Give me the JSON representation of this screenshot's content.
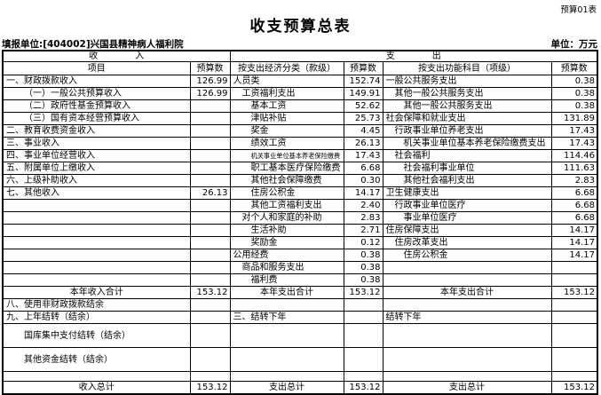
{
  "page": {
    "form_number": "预算01表",
    "title": "收支预算总表",
    "reporting_unit": "填报单位:[404002]兴国县精神病人福利院",
    "unit_note": "单位：万元"
  },
  "table": {
    "group_headers": {
      "income": "收入",
      "expenditure": "支出"
    },
    "column_headers": [
      "项目",
      "预算数",
      "按支出经济分类（款级）",
      "预算数",
      "按支出功能科目（项级）",
      "预算数"
    ],
    "rows": [
      {
        "cells": [
          {
            "t": "一、财政拨款收入"
          },
          {
            "t": "126.99"
          },
          {
            "t": "人员类"
          },
          {
            "t": "152.74"
          },
          {
            "t": "一般公共服务支出"
          },
          {
            "t": "0.38"
          }
        ]
      },
      {
        "cells": [
          {
            "t": "（一）一般公共预算收入",
            "i": 2
          },
          {
            "t": "126.99"
          },
          {
            "t": "工资福利支出",
            "i": 1
          },
          {
            "t": "149.91"
          },
          {
            "t": "其他一般公共服务支出",
            "i": 1
          },
          {
            "t": "0.38"
          }
        ]
      },
      {
        "cells": [
          {
            "t": "（二）政府性基金预算收入",
            "i": 2
          },
          {
            "t": ""
          },
          {
            "t": "基本工资",
            "i": 2
          },
          {
            "t": "52.62"
          },
          {
            "t": "其他一般公共服务支出",
            "i": 2
          },
          {
            "t": "0.38"
          }
        ]
      },
      {
        "cells": [
          {
            "t": "（三）国有资本经营预算收入",
            "i": 2
          },
          {
            "t": ""
          },
          {
            "t": "津贴补贴",
            "i": 2
          },
          {
            "t": "25.73"
          },
          {
            "t": "社会保障和就业支出"
          },
          {
            "t": "131.89"
          }
        ]
      },
      {
        "cells": [
          {
            "t": "二、教育收费资金收入"
          },
          {
            "t": ""
          },
          {
            "t": "奖金",
            "i": 2
          },
          {
            "t": "4.45"
          },
          {
            "t": "行政事业单位养老支出",
            "i": 1
          },
          {
            "t": "17.43"
          }
        ]
      },
      {
        "cells": [
          {
            "t": "三、事业收入"
          },
          {
            "t": ""
          },
          {
            "t": "绩效工资",
            "i": 2
          },
          {
            "t": "26.13"
          },
          {
            "t": "机关事业单位基本养老保险缴费支出",
            "i": 2
          },
          {
            "t": "17.43"
          }
        ]
      },
      {
        "cells": [
          {
            "t": "四、事业单位经营收入"
          },
          {
            "t": ""
          },
          {
            "t": "机关事业单位基本养老保险缴费",
            "i": 2
          },
          {
            "t": "17.43"
          },
          {
            "t": "社会福利",
            "i": 1
          },
          {
            "t": "114.46"
          }
        ]
      },
      {
        "cells": [
          {
            "t": "五、附属单位上缴收入"
          },
          {
            "t": ""
          },
          {
            "t": "职工基本医疗保险缴费",
            "i": 2
          },
          {
            "t": "6.68"
          },
          {
            "t": "社会福利事业单位",
            "i": 2
          },
          {
            "t": "111.63"
          }
        ]
      },
      {
        "cells": [
          {
            "t": "六、上级补助收入"
          },
          {
            "t": ""
          },
          {
            "t": "其他社会保障缴费",
            "i": 2
          },
          {
            "t": "0.30"
          },
          {
            "t": "其他社会福利支出",
            "i": 2
          },
          {
            "t": "2.83"
          }
        ]
      },
      {
        "cells": [
          {
            "t": "七、其他收入"
          },
          {
            "t": "26.13"
          },
          {
            "t": "住房公积金",
            "i": 2
          },
          {
            "t": "14.17"
          },
          {
            "t": "卫生健康支出"
          },
          {
            "t": "6.68"
          }
        ]
      },
      {
        "cells": [
          {
            "t": ""
          },
          {
            "t": ""
          },
          {
            "t": "其他工资福利支出",
            "i": 2
          },
          {
            "t": "2.40"
          },
          {
            "t": "行政事业单位医疗",
            "i": 1
          },
          {
            "t": "6.68"
          }
        ]
      },
      {
        "cells": [
          {
            "t": ""
          },
          {
            "t": ""
          },
          {
            "t": "对个人和家庭的补助",
            "i": 1
          },
          {
            "t": "2.83"
          },
          {
            "t": "事业单位医疗",
            "i": 2
          },
          {
            "t": "6.68"
          }
        ]
      },
      {
        "cells": [
          {
            "t": ""
          },
          {
            "t": ""
          },
          {
            "t": "生活补助",
            "i": 2
          },
          {
            "t": "2.71"
          },
          {
            "t": "住房保障支出"
          },
          {
            "t": "14.17"
          }
        ]
      },
      {
        "cells": [
          {
            "t": ""
          },
          {
            "t": ""
          },
          {
            "t": "奖励金",
            "i": 2
          },
          {
            "t": "0.12"
          },
          {
            "t": "住房改革支出",
            "i": 1
          },
          {
            "t": "14.17"
          }
        ]
      },
      {
        "cells": [
          {
            "t": ""
          },
          {
            "t": ""
          },
          {
            "t": "公用经费"
          },
          {
            "t": "0.38"
          },
          {
            "t": "住房公积金",
            "i": 2
          },
          {
            "t": "14.17"
          }
        ]
      },
      {
        "cells": [
          {
            "t": ""
          },
          {
            "t": ""
          },
          {
            "t": "商品和服务支出",
            "i": 1
          },
          {
            "t": "0.38"
          },
          {
            "t": ""
          },
          {
            "t": ""
          }
        ]
      },
      {
        "cells": [
          {
            "t": ""
          },
          {
            "t": ""
          },
          {
            "t": "福利费",
            "i": 2
          },
          {
            "t": "0.38"
          },
          {
            "t": ""
          },
          {
            "t": ""
          }
        ]
      },
      {
        "cells": [
          {
            "t": "本年收入合计",
            "c": true
          },
          {
            "t": "153.12"
          },
          {
            "t": "本年支出合计",
            "c": true
          },
          {
            "t": "153.12"
          },
          {
            "t": "本年支出合计",
            "c": true
          },
          {
            "t": "153.12"
          }
        ]
      },
      {
        "cells": [
          {
            "t": "八、使用非财政拨款结余"
          },
          {
            "t": ""
          },
          {
            "t": ""
          },
          {
            "t": ""
          },
          {
            "t": ""
          },
          {
            "t": ""
          }
        ]
      },
      {
        "cells": [
          {
            "t": "九、上年结转（结余）"
          },
          {
            "t": ""
          },
          {
            "t": "三、结转下年"
          },
          {
            "t": ""
          },
          {
            "t": "结转下年"
          },
          {
            "t": ""
          }
        ]
      },
      {
        "h": "tall",
        "cells": [
          {
            "t": "国库集中支付结转（结余）",
            "i": 2
          },
          {
            "t": ""
          },
          {
            "t": ""
          },
          {
            "t": ""
          },
          {
            "t": ""
          },
          {
            "t": ""
          }
        ]
      },
      {
        "h": "tall",
        "cells": [
          {
            "t": "其他资金结转（结余）",
            "i": 2
          },
          {
            "t": ""
          },
          {
            "t": ""
          },
          {
            "t": ""
          },
          {
            "t": ""
          },
          {
            "t": ""
          }
        ]
      },
      {
        "h": "short",
        "cells": [
          {
            "t": ""
          },
          {
            "t": ""
          },
          {
            "t": ""
          },
          {
            "t": ""
          },
          {
            "t": ""
          },
          {
            "t": ""
          }
        ]
      },
      {
        "cells": [
          {
            "t": "收入总计",
            "c": true
          },
          {
            "t": "153.12"
          },
          {
            "t": "支出总计",
            "c": true
          },
          {
            "t": "153.12"
          },
          {
            "t": "支出总计",
            "c": true
          },
          {
            "t": "153.12"
          }
        ]
      }
    ]
  }
}
